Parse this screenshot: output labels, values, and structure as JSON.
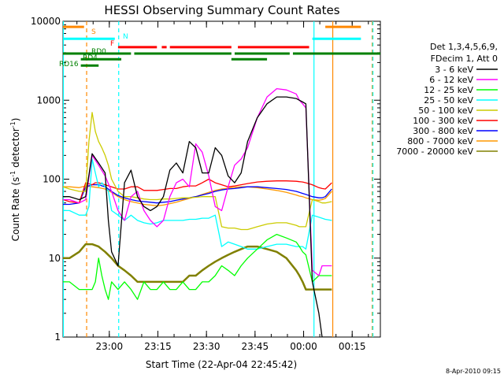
{
  "chart_data": {
    "type": "line",
    "title": "HESSI Observing Summary Count Rates",
    "xlabel": "Start Time (22-Apr-04 22:45:42)",
    "ylabel_main": "Count Rate (s",
    "ylabel_sup": "-1",
    "ylabel_mid": " detector",
    "ylabel_sup2": "-1",
    "ylabel_end": ")",
    "x_units": "minutes since 22:45:42",
    "xlim": [
      0,
      98
    ],
    "ylim": [
      1,
      10000
    ],
    "y_scale": "log",
    "x_ticks": [
      {
        "label": "23:00",
        "value": 14.3
      },
      {
        "label": "23:15",
        "value": 29.3
      },
      {
        "label": "23:30",
        "value": 44.3
      },
      {
        "label": "23:45",
        "value": 59.3
      },
      {
        "label": "00:00",
        "value": 74.3
      },
      {
        "label": "00:15",
        "value": 89.3
      }
    ],
    "y_ticks": [
      {
        "label": "1",
        "value": 1
      },
      {
        "label": "10",
        "value": 10
      },
      {
        "label": "100",
        "value": 100
      },
      {
        "label": "1000",
        "value": 1000
      },
      {
        "label": "10000",
        "value": 10000
      }
    ],
    "legend_header": [
      "Det 1,3,4,5,6,9,",
      "FDecim 1, Att 0"
    ],
    "legend_placement": "right",
    "series": [
      {
        "name": "3 - 6 keV",
        "color": "#000000",
        "x": [
          0,
          2,
          5,
          7,
          9,
          11,
          13,
          14,
          15,
          17,
          19,
          21,
          23,
          25,
          27,
          29,
          31,
          33,
          35,
          37,
          39,
          41,
          43,
          45,
          47,
          49,
          51,
          53,
          55,
          57,
          60,
          63,
          66,
          69,
          72,
          73,
          74,
          75,
          77,
          79,
          80,
          81,
          83
        ],
        "y": [
          60,
          60,
          55,
          60,
          210,
          160,
          120,
          30,
          12,
          8,
          90,
          130,
          60,
          45,
          40,
          45,
          60,
          130,
          160,
          120,
          300,
          250,
          120,
          120,
          250,
          200,
          110,
          90,
          120,
          300,
          600,
          900,
          1100,
          1100,
          1050,
          1000,
          950,
          900,
          5,
          2,
          1,
          1,
          1
        ]
      },
      {
        "name": "6 - 12 keV",
        "color": "#ff00ff",
        "x": [
          0,
          2,
          5,
          7,
          9,
          11,
          13,
          15,
          17,
          19,
          21,
          23,
          25,
          27,
          29,
          31,
          33,
          35,
          37,
          39,
          41,
          43,
          45,
          47,
          49,
          51,
          53,
          55,
          57,
          60,
          63,
          66,
          69,
          72,
          73,
          74,
          75,
          77,
          79,
          80,
          81,
          83
        ],
        "y": [
          55,
          55,
          50,
          55,
          200,
          150,
          110,
          70,
          40,
          30,
          60,
          70,
          40,
          30,
          25,
          30,
          60,
          90,
          100,
          80,
          280,
          220,
          110,
          45,
          40,
          80,
          150,
          180,
          250,
          600,
          1100,
          1400,
          1350,
          1200,
          1000,
          900,
          800,
          7,
          6,
          8,
          8,
          8
        ]
      },
      {
        "name": "12 - 25 keV",
        "color": "#00ff00",
        "x": [
          0,
          2,
          5,
          7,
          9,
          10,
          11,
          12,
          13,
          14,
          15,
          17,
          19,
          21,
          23,
          25,
          27,
          29,
          31,
          33,
          35,
          37,
          39,
          41,
          43,
          45,
          47,
          49,
          51,
          53,
          55,
          57,
          60,
          63,
          66,
          69,
          72,
          73,
          74,
          75,
          77,
          79,
          80,
          81,
          83
        ],
        "y": [
          5,
          5,
          4,
          4,
          4,
          5,
          10,
          6,
          4,
          3,
          5,
          4,
          5,
          4,
          3,
          5,
          4,
          4,
          5,
          4,
          4,
          5,
          4,
          4,
          5,
          5,
          6,
          8,
          7,
          6,
          8,
          10,
          13,
          17,
          20,
          18,
          16,
          14,
          12,
          11,
          5,
          6,
          6,
          6,
          6
        ]
      },
      {
        "name": "25 - 50 keV",
        "color": "#00ffff",
        "x": [
          0,
          2,
          5,
          7,
          8,
          9,
          10,
          11,
          12,
          13,
          14,
          15,
          17,
          19,
          21,
          23,
          25,
          27,
          29,
          31,
          33,
          35,
          37,
          39,
          41,
          43,
          45,
          47,
          49,
          51,
          53,
          55,
          57,
          60,
          63,
          66,
          69,
          72,
          73,
          74,
          75,
          77,
          79,
          80,
          81,
          83
        ],
        "y": [
          40,
          40,
          35,
          35,
          45,
          180,
          120,
          80,
          90,
          80,
          70,
          40,
          35,
          30,
          35,
          30,
          28,
          27,
          28,
          30,
          30,
          30,
          30,
          31,
          31,
          32,
          32,
          35,
          14,
          16,
          15,
          14,
          13,
          13,
          14,
          15,
          15,
          14,
          14,
          14,
          13,
          35,
          33,
          32,
          31,
          30
        ]
      },
      {
        "name": "50 - 100 keV",
        "color": "#cccc00",
        "x": [
          0,
          2,
          5,
          7,
          8,
          9,
          10,
          11,
          12,
          13,
          14,
          15,
          17,
          19,
          21,
          23,
          25,
          27,
          29,
          31,
          33,
          35,
          37,
          39,
          41,
          43,
          45,
          47,
          49,
          51,
          53,
          55,
          57,
          60,
          63,
          66,
          69,
          72,
          73,
          74,
          75,
          77,
          79,
          80,
          81,
          83
        ],
        "y": [
          80,
          75,
          70,
          70,
          300,
          700,
          400,
          300,
          250,
          200,
          150,
          100,
          70,
          60,
          60,
          58,
          56,
          55,
          55,
          56,
          56,
          57,
          58,
          58,
          59,
          60,
          60,
          60,
          25,
          24,
          24,
          23,
          23,
          25,
          27,
          28,
          28,
          26,
          25,
          25,
          25,
          55,
          52,
          50,
          50,
          52
        ]
      },
      {
        "name": "100 - 300 keV",
        "color": "#ff0000",
        "x": [
          0,
          2,
          5,
          7,
          9,
          10,
          11,
          13,
          15,
          17,
          19,
          21,
          23,
          25,
          27,
          29,
          31,
          33,
          35,
          37,
          39,
          41,
          43,
          45,
          47,
          49,
          51,
          53,
          55,
          57,
          60,
          63,
          66,
          69,
          72,
          73,
          74,
          75,
          77,
          79,
          80,
          81,
          83
        ],
        "y": [
          55,
          52,
          50,
          90,
          85,
          90,
          90,
          85,
          80,
          75,
          75,
          80,
          80,
          72,
          72,
          72,
          74,
          76,
          76,
          80,
          82,
          82,
          90,
          100,
          90,
          85,
          80,
          82,
          85,
          88,
          92,
          94,
          95,
          95,
          94,
          93,
          92,
          90,
          85,
          78,
          76,
          75,
          90
        ]
      },
      {
        "name": "300 - 800 keV",
        "color": "#0000ff",
        "x": [
          0,
          2,
          5,
          7,
          9,
          11,
          13,
          15,
          17,
          19,
          21,
          23,
          25,
          27,
          29,
          31,
          33,
          35,
          37,
          39,
          41,
          43,
          45,
          47,
          49,
          51,
          53,
          55,
          57,
          60,
          63,
          66,
          69,
          72,
          73,
          74,
          75,
          77,
          79,
          80,
          81,
          83
        ],
        "y": [
          48,
          48,
          50,
          80,
          85,
          85,
          80,
          70,
          62,
          58,
          55,
          53,
          52,
          51,
          50,
          51,
          52,
          54,
          56,
          58,
          60,
          63,
          66,
          70,
          73,
          75,
          76,
          78,
          80,
          80,
          78,
          76,
          74,
          70,
          68,
          66,
          64,
          60,
          58,
          58,
          60,
          75
        ]
      },
      {
        "name": "800 - 7000 keV",
        "color": "#ff9900",
        "x": [
          0,
          2,
          5,
          7,
          9,
          11,
          13,
          15,
          17,
          19,
          21,
          23,
          25,
          27,
          29,
          31,
          33,
          35,
          37,
          39,
          41,
          43,
          45,
          47,
          49,
          51,
          53,
          55,
          57,
          60,
          63,
          66,
          69,
          72,
          73,
          74,
          75,
          77,
          79,
          80,
          81,
          83
        ],
        "y": [
          80,
          80,
          78,
          82,
          80,
          78,
          75,
          68,
          60,
          55,
          52,
          50,
          48,
          47,
          46,
          47,
          49,
          51,
          54,
          57,
          60,
          64,
          68,
          72,
          75,
          77,
          79,
          80,
          80,
          78,
          75,
          72,
          68,
          63,
          61,
          60,
          58,
          55,
          54,
          55,
          57,
          70
        ]
      },
      {
        "name": "7000 - 20000 keV",
        "color": "#808000",
        "x": [
          0,
          2,
          5,
          7,
          9,
          11,
          13,
          15,
          17,
          19,
          21,
          23,
          25,
          27,
          29,
          31,
          33,
          35,
          37,
          39,
          41,
          43,
          45,
          47,
          49,
          51,
          53,
          55,
          57,
          60,
          63,
          66,
          69,
          72,
          73,
          74,
          75,
          77,
          79,
          80,
          81,
          83
        ],
        "y": [
          10,
          10,
          12,
          15,
          15,
          14,
          12,
          10,
          8,
          7,
          6,
          5,
          5,
          5,
          5,
          5,
          5,
          5,
          5,
          6,
          6,
          7,
          8,
          9,
          10,
          11,
          12,
          13,
          14,
          14,
          13,
          12,
          10,
          7,
          6,
          5,
          4,
          4,
          4,
          4,
          4,
          4
        ]
      }
    ],
    "annotations": {
      "flags": [
        {
          "label": "S",
          "color": "#ff8800"
        },
        {
          "label": "N",
          "color": "#00ffff"
        },
        {
          "label": "F",
          "color": "#ff0000"
        },
        {
          "label": "RD0",
          "color": "#008000"
        },
        {
          "label": "RD4",
          "color": "#008000"
        },
        {
          "label": "RD16",
          "color": "#008000"
        }
      ],
      "flag_bars": [
        {
          "color": "#ff8800",
          "level": 8500,
          "segments": [
            [
              -2,
              6.5
            ],
            [
              81,
              92
            ]
          ]
        },
        {
          "color": "#00ffff",
          "level": 6000,
          "segments": [
            [
              -2,
              16
            ],
            [
              77,
              92
            ]
          ]
        },
        {
          "color": "#ff0000",
          "level": 4700,
          "segments": [
            [
              17,
              29
            ],
            [
              30.5,
              32
            ],
            [
              33,
              52
            ],
            [
              54,
              76
            ]
          ]
        },
        {
          "color": "#008000",
          "level": 3900,
          "segments": [
            [
              -2,
              21
            ],
            [
              22,
              52
            ],
            [
              53,
              70
            ],
            [
              71,
              98
            ]
          ]
        },
        {
          "color": "#008000",
          "level": 3300,
          "segments": [
            [
              5.5,
              18
            ],
            [
              52,
              63
            ]
          ]
        },
        {
          "color": "#008000",
          "level": 2750,
          "segments": [
            [
              5.5,
              11
            ]
          ]
        }
      ],
      "vlines": [
        {
          "x": 7.3,
          "color": "#ff8800",
          "dashed": true
        },
        {
          "x": 17.2,
          "color": "#00ffff",
          "dashed": true
        },
        {
          "x": 77.5,
          "color": "#00ffff",
          "dashed": false
        },
        {
          "x": 83.3,
          "color": "#ff8800",
          "dashed": false
        },
        {
          "x": 95.5,
          "color": "#ff8800",
          "dashed": true
        },
        {
          "x": 95.7,
          "color": "#00ffff",
          "dashed": true
        },
        {
          "x": -1.8,
          "color": "#00ffff",
          "dashed": false
        }
      ]
    },
    "footer_date": "8-Apr-2010 09:15"
  }
}
